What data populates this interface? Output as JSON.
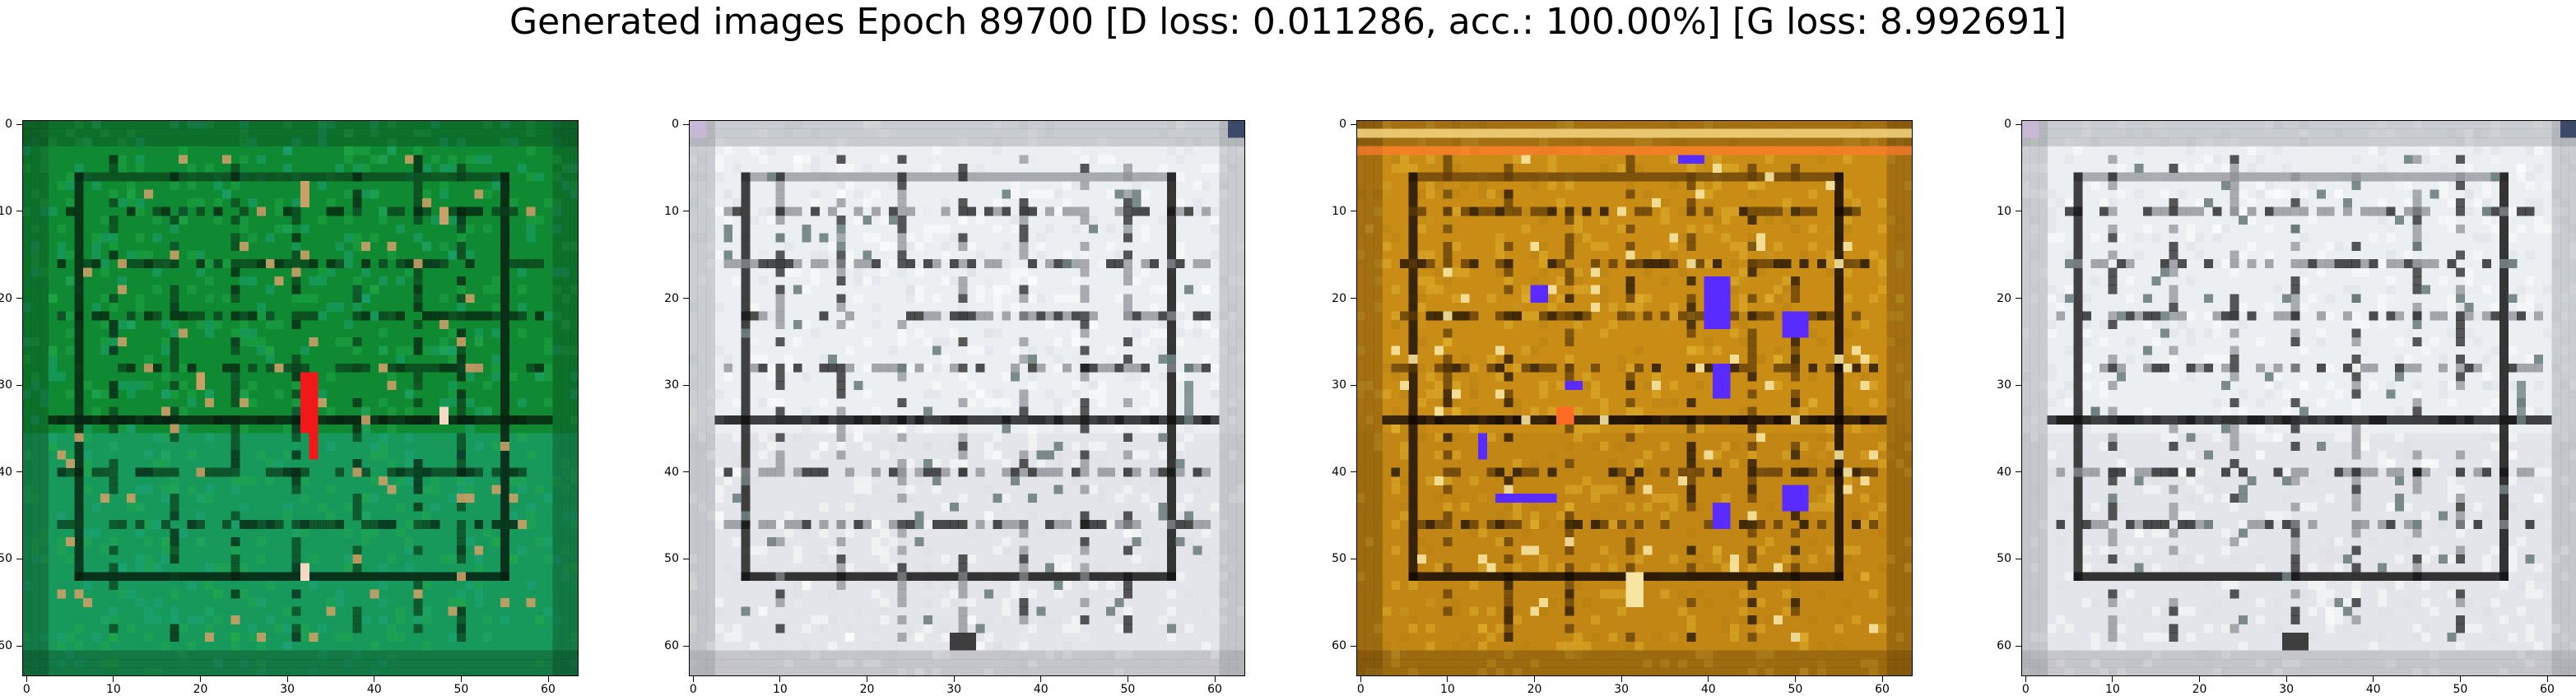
{
  "figure": {
    "title": "Generated images Epoch 89700 [D loss: 0.011286, acc.: 100.00%] [G loss: 8.992691]"
  },
  "axis": {
    "x_ticks": [
      "0",
      "10",
      "20",
      "30",
      "40",
      "50",
      "60"
    ],
    "y_ticks": [
      "0",
      "10",
      "20",
      "30",
      "40",
      "50",
      "60"
    ],
    "xlim": [
      -0.5,
      63.5
    ],
    "ylim": [
      63.5,
      -0.5
    ]
  },
  "panels": [
    {
      "name": "panel-1",
      "scheme": "green",
      "colors": {
        "base": "#0f8a32",
        "base_light": "#23a94a",
        "lower_tint": "#1ea57e",
        "line": "#0c3e1c",
        "dark": "#062010",
        "accent": "#f01818",
        "accent2": "#f5d9c2",
        "dot": "#c9a067"
      }
    },
    {
      "name": "panel-2",
      "scheme": "gray",
      "colors": {
        "base": "#eceff2",
        "base_light": "#ffffff",
        "lower_tint": "#dcdde3",
        "line": "#8a8d93",
        "dark": "#141414",
        "accent": "#3a4a68",
        "accent2": "#c9b7d6",
        "dot": "#6d7f7e"
      }
    },
    {
      "name": "panel-3",
      "scheme": "gold",
      "colors": {
        "base": "#c98d16",
        "base_light": "#e4b531",
        "lower_tint": "#b98112",
        "line": "#5c3a08",
        "dark": "#140a02",
        "accent": "#5a2bff",
        "accent2": "#ff6a24",
        "dot": "#f7e6a2"
      }
    },
    {
      "name": "panel-4",
      "scheme": "gray",
      "colors": {
        "base": "#eceff2",
        "base_light": "#ffffff",
        "lower_tint": "#dcdde3",
        "line": "#8a8d93",
        "dark": "#141414",
        "accent": "#3a4a68",
        "accent2": "#c9b7d6",
        "dot": "#6d7f7e"
      }
    }
  ]
}
